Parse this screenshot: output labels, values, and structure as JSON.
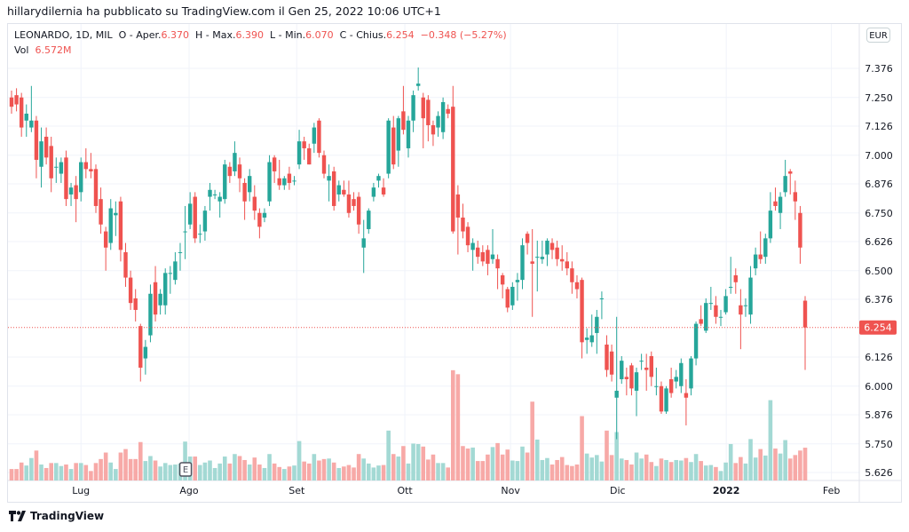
{
  "caption": "hillarydilernia ha pubblicato su TradingView.com il Gen 25, 2022 10:06 UTC+1",
  "legend": {
    "symbol": "LEONARDO, 1D, MIL",
    "open_label": "O - Aper.",
    "open": "6.370",
    "high_label": "H - Max.",
    "high": "6.390",
    "low_label": "L - Min.",
    "low": "6.070",
    "close_label": "C - Chius.",
    "close": "6.254",
    "change": "−0.348 (−5.27%)",
    "vol_label": "Vol",
    "vol": "6.572M"
  },
  "currency_button": "EUR",
  "earnings_marker": "E",
  "logo": "TradingView",
  "colors": {
    "up": "#26a69a",
    "down": "#ef5350",
    "up_vol": "#a3d9d4",
    "down_vol": "#f7a9a7",
    "grid": "#f0f3fa"
  },
  "chart_data": {
    "type": "candlestick",
    "title": "LEONARDO, 1D, MIL",
    "ylabel": "EUR",
    "ylim": [
      5.6,
      7.45
    ],
    "price_ticks": [
      "7.376",
      "7.250",
      "7.126",
      "7.000",
      "6.876",
      "6.750",
      "6.626",
      "6.500",
      "6.376",
      "6.126",
      "6.000",
      "5.876",
      "5.750",
      "5.626"
    ],
    "last_price": "6.254",
    "time_labels": [
      {
        "label": "Lug",
        "bar": 14.0
      },
      {
        "label": "Ago",
        "bar": 35.8
      },
      {
        "label": "Set",
        "bar": 57.5
      },
      {
        "label": "Ott",
        "bar": 79.3
      },
      {
        "label": "Nov",
        "bar": 100.6
      },
      {
        "label": "Dic",
        "bar": 122.2
      },
      {
        "label": "2022",
        "bar": 144.1,
        "bold": true
      },
      {
        "label": "Feb",
        "bar": 165.3
      }
    ],
    "earnings_bar": 35,
    "ohlc": [
      [
        7.25,
        7.28,
        7.18,
        7.21
      ],
      [
        7.26,
        7.29,
        7.19,
        7.22
      ],
      [
        7.25,
        7.27,
        7.08,
        7.12
      ],
      [
        7.15,
        7.22,
        7.08,
        7.18
      ],
      [
        7.12,
        7.3,
        7.1,
        7.15
      ],
      [
        7.15,
        7.17,
        6.9,
        6.98
      ],
      [
        6.95,
        7.12,
        6.86,
        7.06
      ],
      [
        7.08,
        7.12,
        6.96,
        6.99
      ],
      [
        7.04,
        7.08,
        6.84,
        6.9
      ],
      [
        6.95,
        6.99,
        6.88,
        6.95
      ],
      [
        6.92,
        6.99,
        6.88,
        6.97
      ],
      [
        6.99,
        7.02,
        6.78,
        6.81
      ],
      [
        6.83,
        6.88,
        6.78,
        6.86
      ],
      [
        6.87,
        6.91,
        6.71,
        6.81
      ],
      [
        6.84,
        6.99,
        6.8,
        6.97
      ],
      [
        6.97,
        7.03,
        6.9,
        6.94
      ],
      [
        6.94,
        7.01,
        6.9,
        6.93
      ],
      [
        6.94,
        6.96,
        6.75,
        6.78
      ],
      [
        6.81,
        6.86,
        6.66,
        6.7
      ],
      [
        6.67,
        6.69,
        6.5,
        6.6
      ],
      [
        6.62,
        6.81,
        6.59,
        6.77
      ],
      [
        6.74,
        6.8,
        6.65,
        6.75
      ],
      [
        6.8,
        6.82,
        6.54,
        6.59
      ],
      [
        6.58,
        6.62,
        6.43,
        6.47
      ],
      [
        6.47,
        6.5,
        6.33,
        6.36
      ],
      [
        6.38,
        6.42,
        6.28,
        6.33
      ],
      [
        6.26,
        6.27,
        6.02,
        6.08
      ],
      [
        6.12,
        6.2,
        6.05,
        6.17
      ],
      [
        6.22,
        6.44,
        6.19,
        6.4
      ],
      [
        6.45,
        6.52,
        6.28,
        6.31
      ],
      [
        6.35,
        6.42,
        6.31,
        6.4
      ],
      [
        6.35,
        6.51,
        6.31,
        6.49
      ],
      [
        6.49,
        6.52,
        6.4,
        6.49
      ],
      [
        6.46,
        6.58,
        6.44,
        6.54
      ],
      [
        6.58,
        6.62,
        6.5,
        6.58
      ],
      [
        6.67,
        6.78,
        6.55,
        6.67
      ],
      [
        6.7,
        6.84,
        6.68,
        6.79
      ],
      [
        6.82,
        6.84,
        6.62,
        6.64
      ],
      [
        6.66,
        6.7,
        6.62,
        6.66
      ],
      [
        6.67,
        6.78,
        6.63,
        6.76
      ],
      [
        6.82,
        6.88,
        6.76,
        6.85
      ],
      [
        6.83,
        6.85,
        6.81,
        6.83
      ],
      [
        6.8,
        6.84,
        6.73,
        6.82
      ],
      [
        6.81,
        6.98,
        6.79,
        6.96
      ],
      [
        6.95,
        6.97,
        6.88,
        6.91
      ],
      [
        6.93,
        7.06,
        6.91,
        7.01
      ],
      [
        6.96,
        6.99,
        6.84,
        6.9
      ],
      [
        6.88,
        6.9,
        6.72,
        6.8
      ],
      [
        6.84,
        6.94,
        6.8,
        6.91
      ],
      [
        6.82,
        6.87,
        6.72,
        6.76
      ],
      [
        6.75,
        6.77,
        6.64,
        6.69
      ],
      [
        6.73,
        6.77,
        6.71,
        6.75
      ],
      [
        6.8,
        7.0,
        6.78,
        6.97
      ],
      [
        6.99,
        7.0,
        6.88,
        6.93
      ],
      [
        6.9,
        6.98,
        6.85,
        6.87
      ],
      [
        6.87,
        6.91,
        6.85,
        6.9
      ],
      [
        6.92,
        6.95,
        6.85,
        6.88
      ],
      [
        6.89,
        6.91,
        6.87,
        6.89
      ],
      [
        6.96,
        7.11,
        6.94,
        7.06
      ],
      [
        7.06,
        7.08,
        6.98,
        7.03
      ],
      [
        7.03,
        7.05,
        6.96,
        6.96
      ],
      [
        7.05,
        7.14,
        7.01,
        7.12
      ],
      [
        7.15,
        7.16,
        6.99,
        7.01
      ],
      [
        7.0,
        7.02,
        6.9,
        6.92
      ],
      [
        6.89,
        6.96,
        6.8,
        6.91
      ],
      [
        6.93,
        6.95,
        6.76,
        6.78
      ],
      [
        6.83,
        6.89,
        6.8,
        6.87
      ],
      [
        6.85,
        6.89,
        6.82,
        6.83
      ],
      [
        6.83,
        6.89,
        6.73,
        6.75
      ],
      [
        6.81,
        6.84,
        6.76,
        6.78
      ],
      [
        6.82,
        6.84,
        6.66,
        6.7
      ],
      [
        6.6,
        6.72,
        6.49,
        6.64
      ],
      [
        6.68,
        6.77,
        6.66,
        6.76
      ],
      [
        6.82,
        6.88,
        6.8,
        6.86
      ],
      [
        6.89,
        6.92,
        6.86,
        6.91
      ],
      [
        6.86,
        6.9,
        6.82,
        6.83
      ],
      [
        6.92,
        7.16,
        6.9,
        7.15
      ],
      [
        7.12,
        7.17,
        6.94,
        6.96
      ],
      [
        7.02,
        7.17,
        6.95,
        7.16
      ],
      [
        7.19,
        7.3,
        7.09,
        7.11
      ],
      [
        7.03,
        7.17,
        6.99,
        7.15
      ],
      [
        7.15,
        7.28,
        7.1,
        7.26
      ],
      [
        7.3,
        7.38,
        7.28,
        7.31
      ],
      [
        7.25,
        7.27,
        7.03,
        7.16
      ],
      [
        7.24,
        7.26,
        7.06,
        7.13
      ],
      [
        7.13,
        7.15,
        7.04,
        7.09
      ],
      [
        7.12,
        7.19,
        7.08,
        7.17
      ],
      [
        7.1,
        7.25,
        7.07,
        7.23
      ],
      [
        7.2,
        7.22,
        7.16,
        7.18
      ],
      [
        7.21,
        7.3,
        6.66,
        6.67
      ],
      [
        6.83,
        6.87,
        6.57,
        6.73
      ],
      [
        6.73,
        6.79,
        6.64,
        6.67
      ],
      [
        6.69,
        6.71,
        6.58,
        6.61
      ],
      [
        6.59,
        6.64,
        6.5,
        6.62
      ],
      [
        6.6,
        6.63,
        6.53,
        6.56
      ],
      [
        6.58,
        6.61,
        6.52,
        6.54
      ],
      [
        6.59,
        6.61,
        6.48,
        6.53
      ],
      [
        6.55,
        6.68,
        6.53,
        6.57
      ],
      [
        6.55,
        6.57,
        6.42,
        6.51
      ],
      [
        6.48,
        6.49,
        6.38,
        6.44
      ],
      [
        6.42,
        6.43,
        6.32,
        6.34
      ],
      [
        6.35,
        6.45,
        6.33,
        6.43
      ],
      [
        6.45,
        6.49,
        6.37,
        6.46
      ],
      [
        6.46,
        6.64,
        6.42,
        6.61
      ],
      [
        6.66,
        6.67,
        6.57,
        6.62
      ],
      [
        6.54,
        6.68,
        6.3,
        6.53
      ],
      [
        6.56,
        6.63,
        6.41,
        6.56
      ],
      [
        6.55,
        6.63,
        6.53,
        6.56
      ],
      [
        6.57,
        6.64,
        6.52,
        6.63
      ],
      [
        6.62,
        6.64,
        6.55,
        6.59
      ],
      [
        6.6,
        6.63,
        6.52,
        6.55
      ],
      [
        6.55,
        6.61,
        6.5,
        6.54
      ],
      [
        6.54,
        6.58,
        6.48,
        6.51
      ],
      [
        6.51,
        6.54,
        6.4,
        6.45
      ],
      [
        6.45,
        6.48,
        6.38,
        6.42
      ],
      [
        6.46,
        6.47,
        6.12,
        6.19
      ],
      [
        6.2,
        6.25,
        6.14,
        6.21
      ],
      [
        6.19,
        6.31,
        6.17,
        6.22
      ],
      [
        6.23,
        6.33,
        6.14,
        6.3
      ],
      [
        6.38,
        6.41,
        6.29,
        6.38
      ],
      [
        6.18,
        6.22,
        6.04,
        6.07
      ],
      [
        6.15,
        6.18,
        6.02,
        6.05
      ],
      [
        5.95,
        6.3,
        5.77,
        5.98
      ],
      [
        6.03,
        6.13,
        6.01,
        6.11
      ],
      [
        6.04,
        6.08,
        5.96,
        6.03
      ],
      [
        6.09,
        6.1,
        5.96,
        5.99
      ],
      [
        5.98,
        6.08,
        5.87,
        6.06
      ],
      [
        6.11,
        6.14,
        6.07,
        6.11
      ],
      [
        6.08,
        6.14,
        5.98,
        6.07
      ],
      [
        6.13,
        6.15,
        6.0,
        6.04
      ],
      [
        6.0,
        6.08,
        5.96,
        6.0
      ],
      [
        6.0,
        6.02,
        5.88,
        5.89
      ],
      [
        5.89,
        6.0,
        5.88,
        5.99
      ],
      [
        6.03,
        6.08,
        5.95,
        5.97
      ],
      [
        6.02,
        6.07,
        5.99,
        6.04
      ],
      [
        6.0,
        6.12,
        5.97,
        6.1
      ],
      [
        5.97,
        6.03,
        5.83,
        5.95
      ],
      [
        5.99,
        6.13,
        5.96,
        6.12
      ],
      [
        6.12,
        6.28,
        6.09,
        6.27
      ],
      [
        6.29,
        6.35,
        6.26,
        6.27
      ],
      [
        6.24,
        6.38,
        6.23,
        6.36
      ],
      [
        6.36,
        6.43,
        6.33,
        6.36
      ],
      [
        6.35,
        6.39,
        6.27,
        6.3
      ],
      [
        6.3,
        6.33,
        6.26,
        6.3
      ],
      [
        6.32,
        6.42,
        6.31,
        6.39
      ],
      [
        6.43,
        6.56,
        6.4,
        6.43
      ],
      [
        6.48,
        6.51,
        6.4,
        6.45
      ],
      [
        6.35,
        6.42,
        6.16,
        6.31
      ],
      [
        6.35,
        6.38,
        6.3,
        6.35
      ],
      [
        6.31,
        6.52,
        6.27,
        6.47
      ],
      [
        6.51,
        6.6,
        6.48,
        6.57
      ],
      [
        6.57,
        6.67,
        6.53,
        6.55
      ],
      [
        6.56,
        6.66,
        6.53,
        6.64
      ],
      [
        6.64,
        6.84,
        6.62,
        6.76
      ],
      [
        6.8,
        6.86,
        6.76,
        6.78
      ],
      [
        6.75,
        6.84,
        6.68,
        6.82
      ],
      [
        6.84,
        6.98,
        6.82,
        6.91
      ],
      [
        6.93,
        6.94,
        6.83,
        6.92
      ],
      [
        6.84,
        6.89,
        6.72,
        6.8
      ],
      [
        6.75,
        6.78,
        6.53,
        6.6
      ],
      [
        6.37,
        6.39,
        6.07,
        6.254
      ]
    ],
    "volume_millions": [
      2.3,
      2.3,
      3.6,
      3.0,
      4.5,
      6.0,
      3.2,
      2.5,
      3.5,
      3.5,
      2.9,
      3.2,
      2.3,
      3.5,
      3.5,
      3.1,
      1.9,
      3.5,
      4.3,
      5.6,
      3.6,
      2.3,
      5.6,
      6.3,
      4.3,
      4.3,
      7.7,
      3.9,
      4.9,
      4.0,
      2.8,
      3.5,
      3.1,
      3.2,
      3.4,
      7.8,
      4.8,
      4.8,
      3.1,
      3.6,
      4.0,
      2.5,
      3.4,
      4.8,
      3.4,
      5.3,
      4.9,
      4.1,
      3.2,
      4.6,
      3.2,
      2.5,
      5.3,
      3.4,
      2.7,
      2.3,
      2.8,
      3.0,
      7.9,
      3.8,
      3.4,
      5.3,
      4.0,
      4.3,
      4.4,
      3.6,
      2.5,
      2.8,
      3.1,
      2.6,
      5.3,
      4.4,
      3.4,
      2.6,
      3.0,
      3.1,
      10.0,
      5.3,
      4.8,
      6.9,
      3.4,
      7.4,
      7.3,
      6.8,
      4.2,
      5.2,
      3.5,
      3.5,
      2.6,
      22.1,
      21.3,
      6.9,
      6.4,
      6.6,
      3.9,
      3.9,
      5.2,
      6.7,
      7.5,
      5.2,
      6.2,
      4.0,
      3.9,
      6.8,
      5.6,
      15.8,
      8.2,
      4.1,
      4.5,
      3.2,
      4.1,
      4.7,
      3.1,
      2.9,
      3.2,
      12.9,
      5.4,
      4.6,
      5.1,
      3.8,
      10.0,
      5.1,
      9.7,
      4.4,
      4.1,
      3.2,
      5.6,
      4.4,
      5.2,
      3.7,
      2.9,
      4.4,
      4.1,
      3.7,
      4.1,
      4.0,
      4.5,
      3.7,
      5.3,
      3.9,
      3.0,
      3.1,
      2.7,
      1.9,
      3.6,
      7.3,
      3.5,
      4.7,
      3.4,
      8.3,
      4.6,
      6.3,
      5.0,
      16.1,
      6.4,
      5.4,
      8.1,
      4.4,
      5.1,
      6.0,
      6.572
    ]
  }
}
